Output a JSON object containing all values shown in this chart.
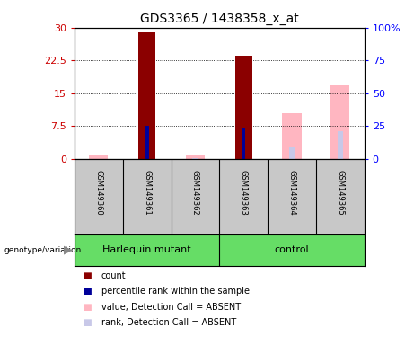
{
  "title": "GDS3365 / 1438358_x_at",
  "samples": [
    "GSM149360",
    "GSM149361",
    "GSM149362",
    "GSM149363",
    "GSM149364",
    "GSM149365"
  ],
  "count_values": [
    0,
    29,
    0,
    23.5,
    0,
    0
  ],
  "rank_values": [
    0,
    25,
    0,
    24,
    0,
    0
  ],
  "absent_value_values": [
    0.7,
    0,
    0.7,
    0,
    10.5,
    16.8
  ],
  "absent_rank_values": [
    0,
    0,
    0.5,
    0,
    9.0,
    21.0
  ],
  "ylim_left": [
    0,
    30
  ],
  "ylim_right": [
    0,
    100
  ],
  "yticks_left": [
    0,
    7.5,
    15,
    22.5,
    30
  ],
  "ytick_labels_left": [
    "0",
    "7.5",
    "15",
    "22.5",
    "30"
  ],
  "yticks_right": [
    0,
    25,
    50,
    75,
    100
  ],
  "ytick_labels_right": [
    "0",
    "25",
    "50",
    "75",
    "100%"
  ],
  "color_count": "#8B0000",
  "color_rank": "#000099",
  "color_absent_value": "#FFB6C1",
  "color_absent_rank": "#C8C8E8",
  "bar_width": 0.35,
  "absent_bar_width": 0.28,
  "rank_bar_width": 0.08,
  "bg_color": "#C8C8C8",
  "green_color": "#66DD66",
  "title_fontsize": 10,
  "axis_fontsize": 8,
  "sample_fontsize": 6,
  "legend_fontsize": 7,
  "group_fontsize": 8
}
